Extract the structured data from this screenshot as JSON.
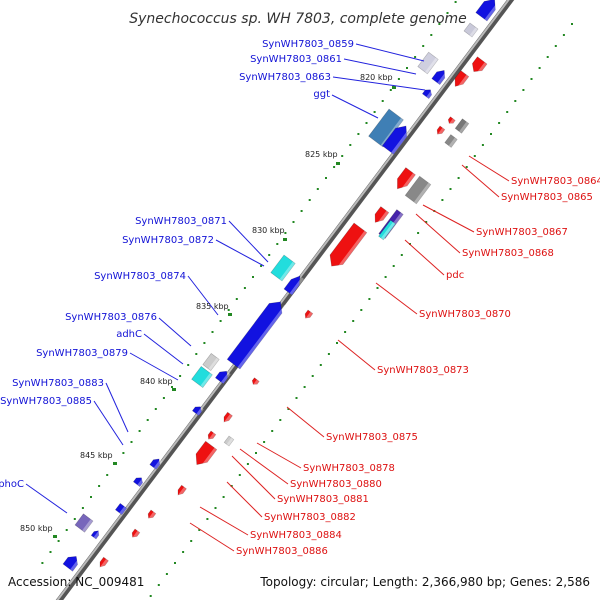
{
  "title": "Synechococcus sp. WH 7803, complete genome",
  "footer": {
    "accession": "Accession: NC_009481",
    "topology": "Topology: circular; Length: 2,366,980 bp; Genes: 2,586"
  },
  "kbp_labels": [
    "820 kbp",
    "825 kbp",
    "830 kbp",
    "835 kbp",
    "840 kbp",
    "845 kbp",
    "850 kbp"
  ],
  "forward_genes": [
    "SynWH7803_0859",
    "SynWH7803_0861",
    "SynWH7803_0863",
    "ggt",
    "SynWH7803_0871",
    "SynWH7803_0872",
    "SynWH7803_0874",
    "SynWH7803_0876",
    "adhC",
    "SynWH7803_0879",
    "SynWH7803_0883",
    "SynWH7803_0885",
    "phoC"
  ],
  "reverse_genes": [
    "SynWH7803_0864",
    "SynWH7803_0865",
    "SynWH7803_0867",
    "SynWH7803_0868",
    "pdc",
    "SynWH7803_0870",
    "SynWH7803_0873",
    "SynWH7803_0875",
    "SynWH7803_0878",
    "SynWH7803_0880",
    "SynWH7803_0881",
    "SynWH7803_0882",
    "SynWH7803_0884",
    "SynWH7803_0886"
  ],
  "colors": {
    "forward": "#1212d6",
    "reverse": "#dd1111",
    "backbone": "#777777",
    "tick": "#228822"
  }
}
